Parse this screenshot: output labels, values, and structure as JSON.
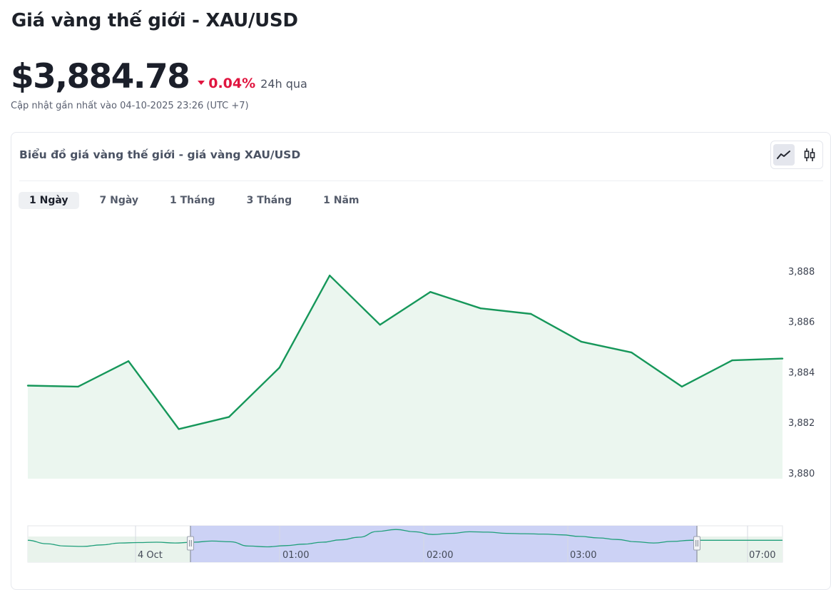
{
  "header": {
    "title": "Giá vàng thế giới - XAU/USD",
    "price": "$3,884.78",
    "change": "0.04%",
    "period": "24h qua",
    "updated": "Cập nhật gần nhất vào 04-10-2025 23:26 (UTC +7)"
  },
  "card": {
    "title": "Biểu đồ giá vàng thế giới - giá vàng XAU/USD",
    "tabs": [
      {
        "label": "1 Ngày",
        "active": true
      },
      {
        "label": "7 Ngày",
        "active": false
      },
      {
        "label": "1 Tháng",
        "active": false
      },
      {
        "label": "3 Tháng",
        "active": false
      },
      {
        "label": "1 Năm",
        "active": false
      }
    ],
    "chart_modes": [
      {
        "icon": "line-chart-icon",
        "active": true
      },
      {
        "icon": "candlestick-icon",
        "active": false
      }
    ]
  },
  "colors": {
    "line": "#16975a",
    "area": "#ebf6ef",
    "negative": "#e0153f",
    "navigator_selection": "#c6cdf4",
    "navigator_line": "#1f9f7a"
  },
  "chart_data": {
    "type": "area",
    "values": [
      3883.46,
      3883.42,
      3884.43,
      3881.74,
      3882.22,
      3884.17,
      3887.82,
      3885.87,
      3887.17,
      3886.52,
      3886.3,
      3885.2,
      3884.77,
      3883.42,
      3884.46,
      3884.53
    ],
    "y_ticks": [
      "3,888",
      "3,886",
      "3,884",
      "3,882",
      "3,880"
    ],
    "y_tick_values": [
      3888,
      3886,
      3884,
      3882,
      3880
    ],
    "ylim": [
      3880,
      3888.8
    ],
    "grid": false,
    "navigator": {
      "labels": [
        "4 Oct",
        "01:00",
        "02:00",
        "03:00",
        "07:00"
      ],
      "values": [
        3884.8,
        3883.9,
        3883.3,
        3883.2,
        3883.6,
        3884.1,
        3884.2,
        3884.3,
        3884.1,
        3884.3,
        3884.6,
        3884.4,
        3883.3,
        3883.1,
        3883.4,
        3883.8,
        3884.3,
        3884.9,
        3885.6,
        3887.1,
        3887.6,
        3887.0,
        3886.3,
        3886.6,
        3887.0,
        3886.9,
        3886.6,
        3886.5,
        3886.4,
        3886.2,
        3885.8,
        3885.4,
        3885.0,
        3884.4,
        3884.1,
        3884.5,
        3884.8,
        3884.8,
        3884.8,
        3884.8,
        3884.8,
        3884.8
      ]
    }
  }
}
